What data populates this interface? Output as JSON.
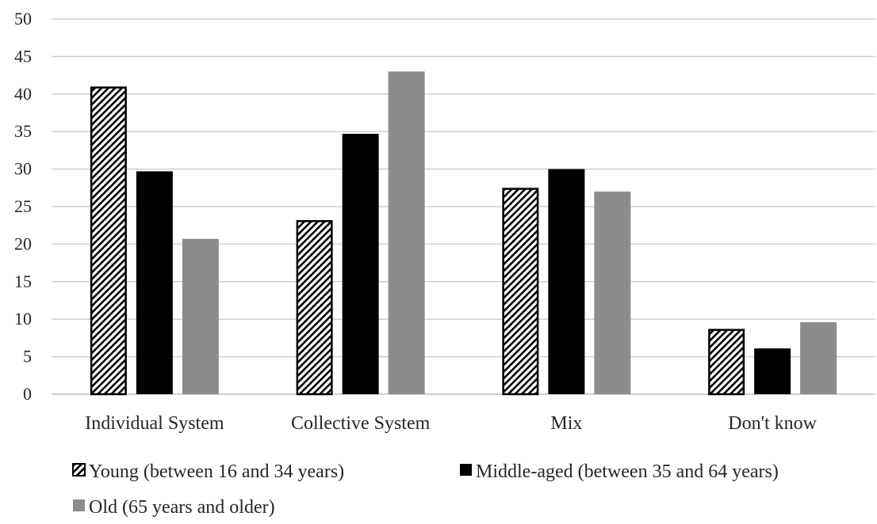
{
  "chart_data": {
    "type": "bar",
    "categories": [
      "Individual System",
      "Collective System",
      "Mix",
      "Don't know"
    ],
    "series": [
      {
        "name": "Young (between 16 and 34 years)",
        "values": [
          41,
          23.2,
          27.5,
          8.7
        ],
        "style": "hatched",
        "color": "#000000"
      },
      {
        "name": "Middle-aged (between 35 and 64 years)",
        "values": [
          29.7,
          34.7,
          30,
          6.1
        ],
        "style": "solid",
        "color": "#000000"
      },
      {
        "name": "Old (65 years and older)",
        "values": [
          20.7,
          43,
          27,
          9.6
        ],
        "style": "solid",
        "color": "#8c8c8c"
      }
    ],
    "ylim": [
      0,
      50
    ],
    "yticks": [
      0,
      5,
      10,
      15,
      20,
      25,
      30,
      35,
      40,
      45,
      50
    ],
    "grid": true,
    "legend_position": "bottom"
  }
}
